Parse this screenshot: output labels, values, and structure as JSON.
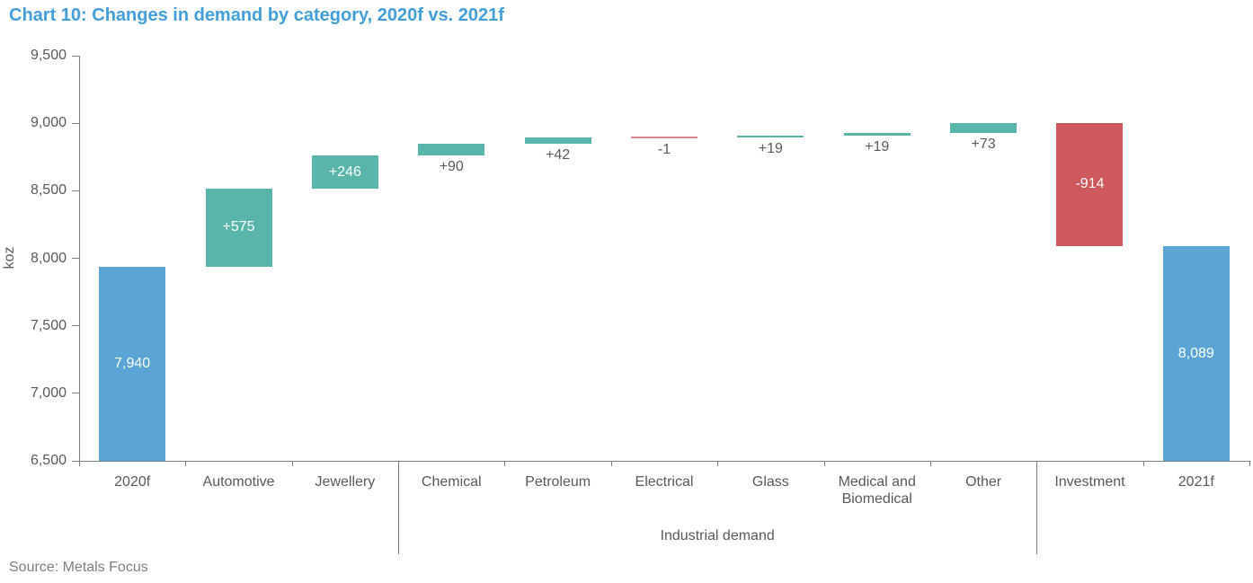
{
  "title": "Chart 10: Changes in demand by category, 2020f vs. 2021f",
  "source": "Source: Metals Focus",
  "chart_data": {
    "type": "bar",
    "subtype": "waterfall",
    "title": "Chart 10: Changes in demand by category, 2020f vs. 2021f",
    "xlabel": "",
    "ylabel": "koz",
    "ylim": [
      6500,
      9500
    ],
    "ytick_step": 500,
    "ytick_labels": [
      "6,500",
      "7,000",
      "7,500",
      "8,000",
      "8,500",
      "9,000",
      "9,500"
    ],
    "grid": false,
    "legend": "none",
    "categories": [
      "2020f",
      "Automotive",
      "Jewellery",
      "Chemical",
      "Petroleum",
      "Electrical",
      "Glass",
      "Medical and Biomedical",
      "Other",
      "Investment",
      "2021f"
    ],
    "bars": [
      {
        "category": "2020f",
        "value": 7940,
        "label": "7,940",
        "kind": "total"
      },
      {
        "category": "Automotive",
        "value": 575,
        "label": "+575",
        "kind": "change"
      },
      {
        "category": "Jewellery",
        "value": 246,
        "label": "+246",
        "kind": "change"
      },
      {
        "category": "Chemical",
        "value": 90,
        "label": "+90",
        "kind": "change"
      },
      {
        "category": "Petroleum",
        "value": 42,
        "label": "+42",
        "kind": "change"
      },
      {
        "category": "Electrical",
        "value": -1,
        "label": "-1",
        "kind": "change"
      },
      {
        "category": "Glass",
        "value": 19,
        "label": "+19",
        "kind": "change"
      },
      {
        "category": "Medical and Biomedical",
        "value": 19,
        "label": "+19",
        "kind": "change"
      },
      {
        "category": "Other",
        "value": 73,
        "label": "+73",
        "kind": "change"
      },
      {
        "category": "Investment",
        "value": -914,
        "label": "-914",
        "kind": "change"
      },
      {
        "category": "2021f",
        "value": 8089,
        "label": "8,089",
        "kind": "total"
      }
    ],
    "group_annotation": {
      "label": "Industrial demand",
      "start_index": 3,
      "end_index": 8
    },
    "colors": {
      "total": "#5BA5D5",
      "increase": "#59B5AA",
      "decrease": "#CD585D",
      "axis": "#7F7F7F",
      "label_gray": "#595959",
      "title_blue": "#429FD8"
    }
  }
}
